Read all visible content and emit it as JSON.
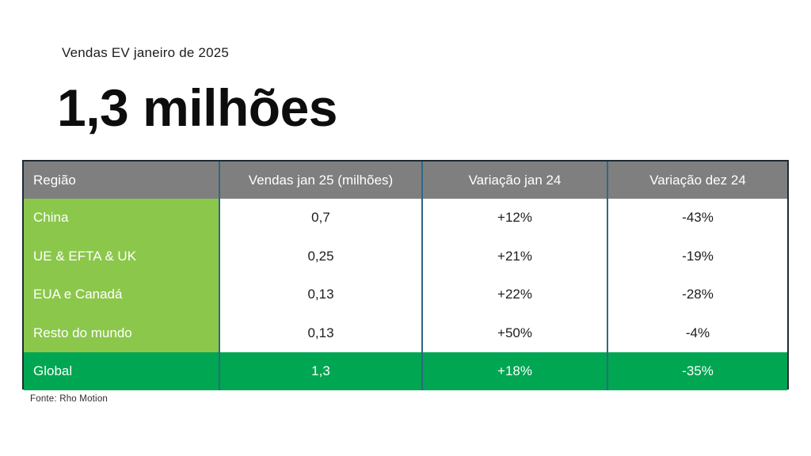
{
  "header": {
    "eyebrow": "Vendas EV janeiro de 2025",
    "headline": "1,3 milhões"
  },
  "table": {
    "columns": [
      "Região",
      "Vendas jan 25 (milhões)",
      "Variação jan 24",
      "Variação dez 24"
    ],
    "rows": [
      {
        "region": "China",
        "sales": "0,7",
        "var_jan24": "+12%",
        "var_dez24": "-43%"
      },
      {
        "region": "UE & EFTA & UK",
        "sales": "0,25",
        "var_jan24": "+21%",
        "var_dez24": "-19%"
      },
      {
        "region": "EUA e Canadá",
        "sales": "0,13",
        "var_jan24": "+22%",
        "var_dez24": "-28%"
      },
      {
        "region": "Resto do mundo",
        "sales": "0,13",
        "var_jan24": "+50%",
        "var_dez24": "-4%"
      },
      {
        "region": "Global",
        "sales": "1,3",
        "var_jan24": "+18%",
        "var_dez24": "-35%"
      }
    ]
  },
  "footer": {
    "source": "Fonte: Rho Motion"
  },
  "colors": {
    "header_bg": "#7f7f7f",
    "region_bg": "#8bc74b",
    "global_bg": "#00a651",
    "column_divider": "#2f6884",
    "outer_border": "#1d2b33",
    "text_dark": "#1c1c1c",
    "text_light": "#ffffff"
  },
  "chart_data": {
    "type": "table",
    "title": "Vendas EV janeiro de 2025",
    "headline_value": "1,3 milhões",
    "columns": [
      "Região",
      "Vendas jan 25 (milhões)",
      "Variação jan 24",
      "Variação dez 24"
    ],
    "rows": [
      [
        "China",
        "0,7",
        "+12%",
        "-43%"
      ],
      [
        "UE & EFTA & UK",
        "0,25",
        "+21%",
        "-19%"
      ],
      [
        "EUA e Canadá",
        "0,13",
        "+22%",
        "-28%"
      ],
      [
        "Resto do mundo",
        "0,13",
        "+50%",
        "-4%"
      ],
      [
        "Global",
        "1,3",
        "+18%",
        "-35%"
      ]
    ],
    "source": "Fonte: Rho Motion"
  }
}
